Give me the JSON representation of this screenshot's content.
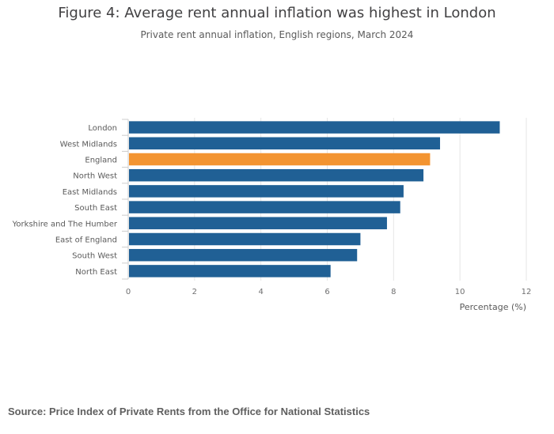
{
  "header": {
    "title": "Figure 4: Average rent annual inflation was highest in London",
    "subtitle": "Private rent annual inflation, English regions, March 2024"
  },
  "footer": {
    "source": "Source: Price Index of Private Rents from the Office for National Statistics"
  },
  "colors": {
    "bar": "#206095",
    "highlight": "#f39431",
    "grid": "#e6e6e6",
    "axis_text": "#707071"
  },
  "chart_data": {
    "type": "bar",
    "orientation": "horizontal",
    "title": "Figure 4: Average rent annual inflation was highest in London",
    "subtitle": "Private rent annual inflation, English regions, March 2024",
    "xlabel": "Percentage (%)",
    "ylabel": "",
    "xlim": [
      0,
      12
    ],
    "xticks": [
      0,
      2,
      4,
      6,
      8,
      10,
      12
    ],
    "grid": true,
    "highlight_category": "England",
    "categories": [
      "London",
      "West Midlands",
      "England",
      "North West",
      "East Midlands",
      "South East",
      "Yorkshire and The Humber",
      "East of England",
      "South West",
      "North East"
    ],
    "values": [
      11.2,
      9.4,
      9.1,
      8.9,
      8.3,
      8.2,
      7.8,
      7.0,
      6.9,
      6.1
    ]
  }
}
